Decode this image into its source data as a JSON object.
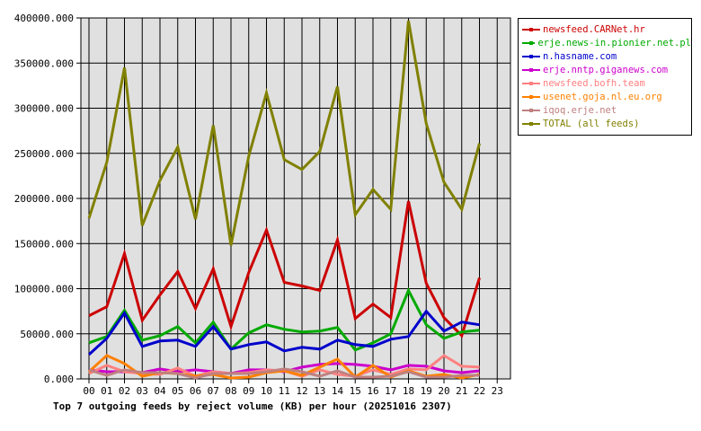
{
  "chart_data": {
    "type": "line",
    "title": "Top 7 outgoing feeds by reject volume (KB) per hour (20251016 2307)",
    "xlabel": "",
    "ylabel": "",
    "ylim": [
      0,
      400000
    ],
    "grid": true,
    "legend_position": "right",
    "x": [
      "00",
      "01",
      "02",
      "03",
      "04",
      "05",
      "06",
      "07",
      "08",
      "09",
      "10",
      "11",
      "12",
      "13",
      "14",
      "15",
      "16",
      "17",
      "18",
      "19",
      "20",
      "21",
      "22",
      "23"
    ],
    "y_ticks": [
      "0.000",
      "50000.000",
      "100000.000",
      "150000.000",
      "200000.000",
      "250000.000",
      "300000.000",
      "350000.000",
      "400000.000"
    ],
    "series": [
      {
        "name": "newsfeed.CARNet.hr",
        "color": "#cc0000",
        "values": [
          70000,
          80000,
          139000,
          65000,
          93000,
          119000,
          78000,
          122000,
          58000,
          118000,
          165000,
          107000,
          103000,
          98000,
          154000,
          67000,
          83000,
          68000,
          197000,
          106000,
          68000,
          48000,
          112000
        ]
      },
      {
        "name": "erje.news-in.pionier.net.pl",
        "color": "#00aa00",
        "values": [
          40000,
          47000,
          76000,
          43000,
          48000,
          58000,
          40000,
          63000,
          33000,
          51000,
          60000,
          55000,
          52000,
          53000,
          57000,
          32000,
          40000,
          50000,
          98000,
          60000,
          45000,
          52000,
          54000
        ]
      },
      {
        "name": "n.hasname.com",
        "color": "#0000cc",
        "values": [
          27000,
          45000,
          73000,
          36000,
          42000,
          43000,
          36000,
          58000,
          33000,
          38000,
          41000,
          31000,
          35000,
          33000,
          43000,
          38000,
          36000,
          44000,
          47000,
          75000,
          53000,
          63000,
          60000
        ]
      },
      {
        "name": "erje.nntp.giganews.com",
        "color": "#cc00cc",
        "values": [
          10000,
          8000,
          8000,
          7000,
          11000,
          8000,
          10000,
          8000,
          6000,
          10000,
          10000,
          8000,
          13000,
          16000,
          17000,
          16000,
          14000,
          10000,
          15000,
          14000,
          9000,
          7000,
          9000
        ]
      },
      {
        "name": "newsfeed.bofh.team",
        "color": "#ff8080",
        "values": [
          6000,
          15000,
          8000,
          6000,
          5000,
          12000,
          3000,
          8000,
          6000,
          7000,
          10000,
          9000,
          3000,
          10000,
          5000,
          3000,
          10000,
          5000,
          11000,
          10000,
          26000,
          14000,
          13000
        ]
      },
      {
        "name": "usenet.goja.nl.eu.org",
        "color": "#ff8000",
        "values": [
          8000,
          26000,
          17000,
          3000,
          7000,
          6000,
          3000,
          5000,
          1000,
          2000,
          7000,
          9000,
          4000,
          13000,
          22000,
          2000,
          15000,
          2000,
          9000,
          3000,
          5000,
          1000,
          5000
        ]
      },
      {
        "name": "iqoq.erje.net",
        "color": "#c08080",
        "values": [
          10000,
          4000,
          10000,
          7000,
          7000,
          6000,
          1000,
          6000,
          6000,
          6000,
          8000,
          11000,
          8000,
          3000,
          9000,
          2000,
          2000,
          3000,
          8000,
          2000,
          2000,
          4000,
          4000
        ]
      },
      {
        "name": "TOTAL (all feeds)",
        "color": "#808000",
        "values": [
          178000,
          240000,
          345000,
          170000,
          220000,
          257000,
          177000,
          281000,
          148000,
          247000,
          317000,
          243000,
          232000,
          252000,
          324000,
          182000,
          210000,
          188000,
          397000,
          283000,
          218000,
          188000,
          261000
        ]
      }
    ]
  },
  "legend": {
    "items": [
      {
        "label": "newsfeed.CARNet.hr",
        "color": "#cc0000"
      },
      {
        "label": "erje.news-in.pionier.net.pl",
        "color": "#00aa00"
      },
      {
        "label": "n.hasname.com",
        "color": "#0000cc"
      },
      {
        "label": "erje.nntp.giganews.com",
        "color": "#cc00cc"
      },
      {
        "label": "newsfeed.bofh.team",
        "color": "#ff8080"
      },
      {
        "label": "usenet.goja.nl.eu.org",
        "color": "#ff8000"
      },
      {
        "label": "iqoq.erje.net",
        "color": "#c08080"
      },
      {
        "label": "TOTAL (all feeds)",
        "color": "#808000"
      }
    ]
  }
}
